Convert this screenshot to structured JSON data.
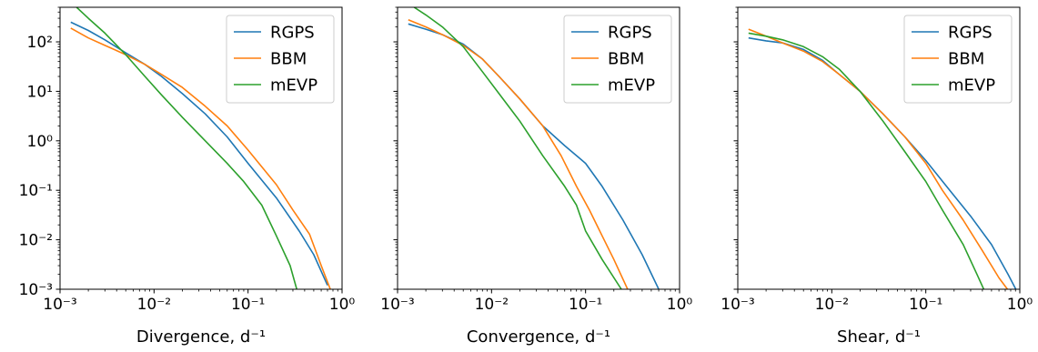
{
  "chart_data": [
    {
      "type": "line",
      "xlabel": "Divergence, d⁻¹",
      "ylabel": "",
      "xscale": "log",
      "yscale": "log",
      "xlim": [
        0.001,
        1
      ],
      "ylim": [
        0.001,
        500
      ],
      "grid": false,
      "legend_position": "top-right",
      "x_ticks": [
        "10⁻³",
        "10⁻²",
        "10⁻¹",
        "10⁰"
      ],
      "y_ticks": [
        "10⁻³",
        "10⁻²",
        "10⁻¹",
        "10⁰",
        "10¹",
        "10²"
      ],
      "series": [
        {
          "name": "RGPS",
          "color": "#1f77b4",
          "x": [
            0.0013,
            0.002,
            0.003,
            0.005,
            0.008,
            0.012,
            0.02,
            0.035,
            0.06,
            0.1,
            0.2,
            0.35,
            0.5,
            0.7
          ],
          "y": [
            250,
            170,
            110,
            60,
            35,
            20,
            9,
            3.5,
            1.2,
            0.35,
            0.07,
            0.015,
            0.005,
            0.0012
          ]
        },
        {
          "name": "BBM",
          "color": "#ff7f0e",
          "x": [
            0.0013,
            0.002,
            0.003,
            0.005,
            0.008,
            0.012,
            0.02,
            0.035,
            0.06,
            0.1,
            0.2,
            0.3,
            0.45,
            0.6,
            0.75
          ],
          "y": [
            190,
            120,
            85,
            55,
            35,
            22,
            12,
            5,
            2,
            0.65,
            0.13,
            0.04,
            0.013,
            0.003,
            0.001
          ]
        },
        {
          "name": "mEVP",
          "color": "#2ca02c",
          "x": [
            0.0015,
            0.002,
            0.003,
            0.005,
            0.008,
            0.012,
            0.02,
            0.035,
            0.06,
            0.09,
            0.14,
            0.2,
            0.28,
            0.33
          ],
          "y": [
            500,
            300,
            150,
            55,
            20,
            8.5,
            3,
            1,
            0.35,
            0.15,
            0.05,
            0.012,
            0.003,
            0.001
          ]
        }
      ]
    },
    {
      "type": "line",
      "xlabel": "Convergence, d⁻¹",
      "ylabel": "",
      "xscale": "log",
      "yscale": "log",
      "xlim": [
        0.001,
        1
      ],
      "ylim": [
        0.001,
        500
      ],
      "grid": false,
      "legend_position": "top-right",
      "x_ticks": [
        "10⁻³",
        "10⁻²",
        "10⁻¹",
        "10⁰"
      ],
      "y_ticks": [],
      "series": [
        {
          "name": "RGPS",
          "color": "#1f77b4",
          "x": [
            0.0013,
            0.002,
            0.003,
            0.005,
            0.008,
            0.012,
            0.02,
            0.035,
            0.06,
            0.1,
            0.15,
            0.25,
            0.4,
            0.6
          ],
          "y": [
            230,
            180,
            140,
            90,
            45,
            20,
            7,
            2,
            0.8,
            0.35,
            0.12,
            0.025,
            0.005,
            0.001
          ]
        },
        {
          "name": "BBM",
          "color": "#ff7f0e",
          "x": [
            0.0013,
            0.002,
            0.003,
            0.005,
            0.008,
            0.012,
            0.02,
            0.035,
            0.055,
            0.08,
            0.11,
            0.15,
            0.2,
            0.28
          ],
          "y": [
            280,
            200,
            140,
            85,
            45,
            20,
            7,
            2,
            0.5,
            0.12,
            0.04,
            0.012,
            0.004,
            0.001
          ]
        },
        {
          "name": "mEVP",
          "color": "#2ca02c",
          "x": [
            0.0015,
            0.002,
            0.003,
            0.005,
            0.008,
            0.012,
            0.02,
            0.035,
            0.06,
            0.08,
            0.1,
            0.15,
            0.24
          ],
          "y": [
            500,
            350,
            200,
            80,
            25,
            9,
            2.5,
            0.5,
            0.12,
            0.05,
            0.015,
            0.004,
            0.001
          ]
        }
      ]
    },
    {
      "type": "line",
      "xlabel": "Shear, d⁻¹",
      "ylabel": "",
      "xscale": "log",
      "yscale": "log",
      "xlim": [
        0.001,
        1
      ],
      "ylim": [
        0.001,
        500
      ],
      "grid": false,
      "legend_position": "top-right",
      "x_ticks": [
        "10⁻³",
        "10⁻²",
        "10⁻¹",
        "10⁰"
      ],
      "y_ticks": [],
      "series": [
        {
          "name": "RGPS",
          "color": "#1f77b4",
          "x": [
            0.0013,
            0.002,
            0.003,
            0.005,
            0.008,
            0.012,
            0.02,
            0.035,
            0.06,
            0.1,
            0.18,
            0.3,
            0.5,
            0.75,
            1.0
          ],
          "y": [
            120,
            105,
            95,
            70,
            42,
            22,
            10,
            3.5,
            1.2,
            0.4,
            0.1,
            0.03,
            0.008,
            0.002,
            0.0007
          ]
        },
        {
          "name": "BBM",
          "color": "#ff7f0e",
          "x": [
            0.0013,
            0.002,
            0.003,
            0.005,
            0.008,
            0.012,
            0.02,
            0.035,
            0.06,
            0.1,
            0.15,
            0.25,
            0.4,
            0.6,
            0.85
          ],
          "y": [
            180,
            130,
            95,
            65,
            40,
            22,
            10,
            3.5,
            1.2,
            0.35,
            0.1,
            0.025,
            0.006,
            0.0017,
            0.0007
          ]
        },
        {
          "name": "mEVP",
          "color": "#2ca02c",
          "x": [
            0.0013,
            0.002,
            0.003,
            0.005,
            0.008,
            0.012,
            0.02,
            0.035,
            0.06,
            0.1,
            0.15,
            0.25,
            0.35,
            0.45
          ],
          "y": [
            150,
            130,
            110,
            80,
            50,
            28,
            10,
            2.5,
            0.6,
            0.15,
            0.04,
            0.008,
            0.002,
            0.0007
          ]
        }
      ]
    }
  ]
}
